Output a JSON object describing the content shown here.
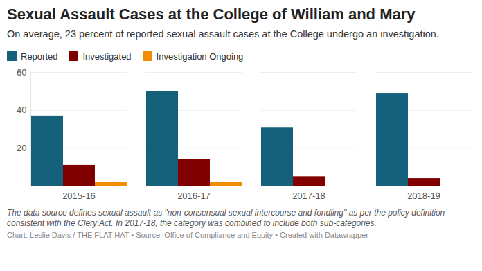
{
  "chart_data": {
    "type": "bar",
    "title": "Sexual Assault Cases at the College of William and Mary",
    "subtitle": "On average, 23 percent of reported sexual assault cases at the College undergo an investigation.",
    "notes": "The data source defines sexual assault as \"non-consensual sexual intercourse and fondling\" as per the policy definition consistent with the Clery Act. In 2017-18, the category was combined to include both sub-categories.",
    "source": "Chart: Leslie Davis / THE FLAT HAT • Source: Office of Compliance and Equity • Created with Datawrapper",
    "categories": [
      "2015-16",
      "2016-17",
      "2017-18",
      "2018-19"
    ],
    "series": [
      {
        "name": "Reported",
        "color": "#15607a",
        "values": [
          37,
          50,
          31,
          49
        ]
      },
      {
        "name": "Investigated",
        "color": "#800000",
        "values": [
          11,
          14,
          5,
          4
        ]
      },
      {
        "name": "Investigation Ongoing",
        "color": "#f28c00",
        "values": [
          2,
          2,
          0,
          0
        ]
      }
    ],
    "ylim": [
      0,
      60
    ],
    "yticks": [
      20,
      40,
      60
    ],
    "grid": true,
    "legend": "top-left"
  }
}
